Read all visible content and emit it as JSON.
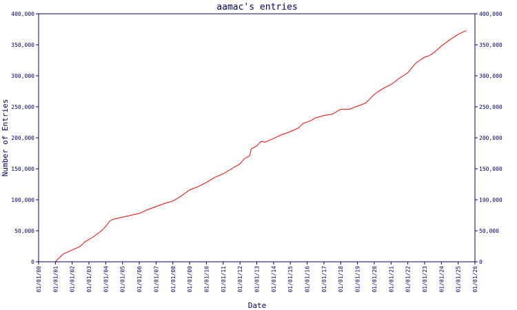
{
  "colors": {
    "axis": "#000066",
    "series": "#ff0000",
    "background": "#ffffff"
  },
  "chart_data": {
    "type": "line",
    "title": "aamac's entries",
    "xlabel": "Date",
    "ylabel": "Number of Entries",
    "xlim": [
      "2000-01-01",
      "2026-01-01"
    ],
    "ylim": [
      0,
      400000
    ],
    "y_axis_both_sides": true,
    "grid": false,
    "x_tick_labels": [
      "01/01/00",
      "01/01/01",
      "01/01/02",
      "01/01/03",
      "01/01/04",
      "01/01/05",
      "01/01/06",
      "01/01/07",
      "01/01/08",
      "01/01/09",
      "01/01/10",
      "01/01/11",
      "01/01/12",
      "01/01/13",
      "01/01/14",
      "01/01/15",
      "01/01/16",
      "01/01/17",
      "01/01/18",
      "01/01/19",
      "01/01/20",
      "01/01/21",
      "01/01/22",
      "01/01/23",
      "01/01/24",
      "01/01/25",
      "01/01/26"
    ],
    "y_ticks": [
      0,
      50000,
      100000,
      150000,
      200000,
      250000,
      300000,
      350000,
      400000
    ],
    "y_tick_labels": [
      "0",
      "50,000",
      "100,000",
      "150,000",
      "200,000",
      "250,000",
      "300,000",
      "350,000",
      "400,000"
    ],
    "series": [
      {
        "color": "#ff0000",
        "points": [
          [
            "2001-01-01",
            0
          ],
          [
            "2001-04-01",
            7000
          ],
          [
            "2001-07-01",
            13000
          ],
          [
            "2002-01-01",
            19000
          ],
          [
            "2002-07-01",
            25000
          ],
          [
            "2002-10-01",
            32000
          ],
          [
            "2003-04-01",
            40000
          ],
          [
            "2003-10-01",
            50000
          ],
          [
            "2004-01-01",
            57000
          ],
          [
            "2004-04-01",
            66000
          ],
          [
            "2004-07-01",
            69000
          ],
          [
            "2005-01-01",
            72000
          ],
          [
            "2005-07-01",
            75000
          ],
          [
            "2006-01-01",
            78000
          ],
          [
            "2006-07-01",
            84000
          ],
          [
            "2007-01-01",
            89000
          ],
          [
            "2007-07-01",
            94000
          ],
          [
            "2008-01-01",
            98000
          ],
          [
            "2008-07-01",
            106000
          ],
          [
            "2009-01-01",
            116000
          ],
          [
            "2009-07-01",
            121000
          ],
          [
            "2010-01-01",
            128000
          ],
          [
            "2010-07-01",
            136000
          ],
          [
            "2011-01-01",
            142000
          ],
          [
            "2011-07-01",
            150000
          ],
          [
            "2012-01-01",
            158000
          ],
          [
            "2012-04-01",
            166000
          ],
          [
            "2012-08-01",
            171000
          ],
          [
            "2012-09-01",
            182000
          ],
          [
            "2013-01-01",
            187000
          ],
          [
            "2013-04-01",
            194000
          ],
          [
            "2013-07-01",
            193000
          ],
          [
            "2014-01-01",
            199000
          ],
          [
            "2014-07-01",
            205000
          ],
          [
            "2015-01-01",
            210000
          ],
          [
            "2015-07-01",
            216000
          ],
          [
            "2015-10-01",
            223000
          ],
          [
            "2016-04-01",
            228000
          ],
          [
            "2016-07-01",
            232000
          ],
          [
            "2017-01-01",
            236000
          ],
          [
            "2017-07-01",
            238000
          ],
          [
            "2018-01-01",
            246000
          ],
          [
            "2018-07-01",
            246000
          ],
          [
            "2019-01-01",
            251000
          ],
          [
            "2019-07-01",
            256000
          ],
          [
            "2020-01-01",
            270000
          ],
          [
            "2020-07-01",
            279000
          ],
          [
            "2021-01-01",
            286000
          ],
          [
            "2021-07-01",
            296000
          ],
          [
            "2022-01-01",
            305000
          ],
          [
            "2022-07-01",
            321000
          ],
          [
            "2023-01-01",
            330000
          ],
          [
            "2023-04-01",
            332000
          ],
          [
            "2023-07-01",
            336000
          ],
          [
            "2024-01-01",
            348000
          ],
          [
            "2024-07-01",
            358000
          ],
          [
            "2025-01-01",
            367000
          ],
          [
            "2025-07-01",
            373000
          ]
        ]
      }
    ]
  }
}
